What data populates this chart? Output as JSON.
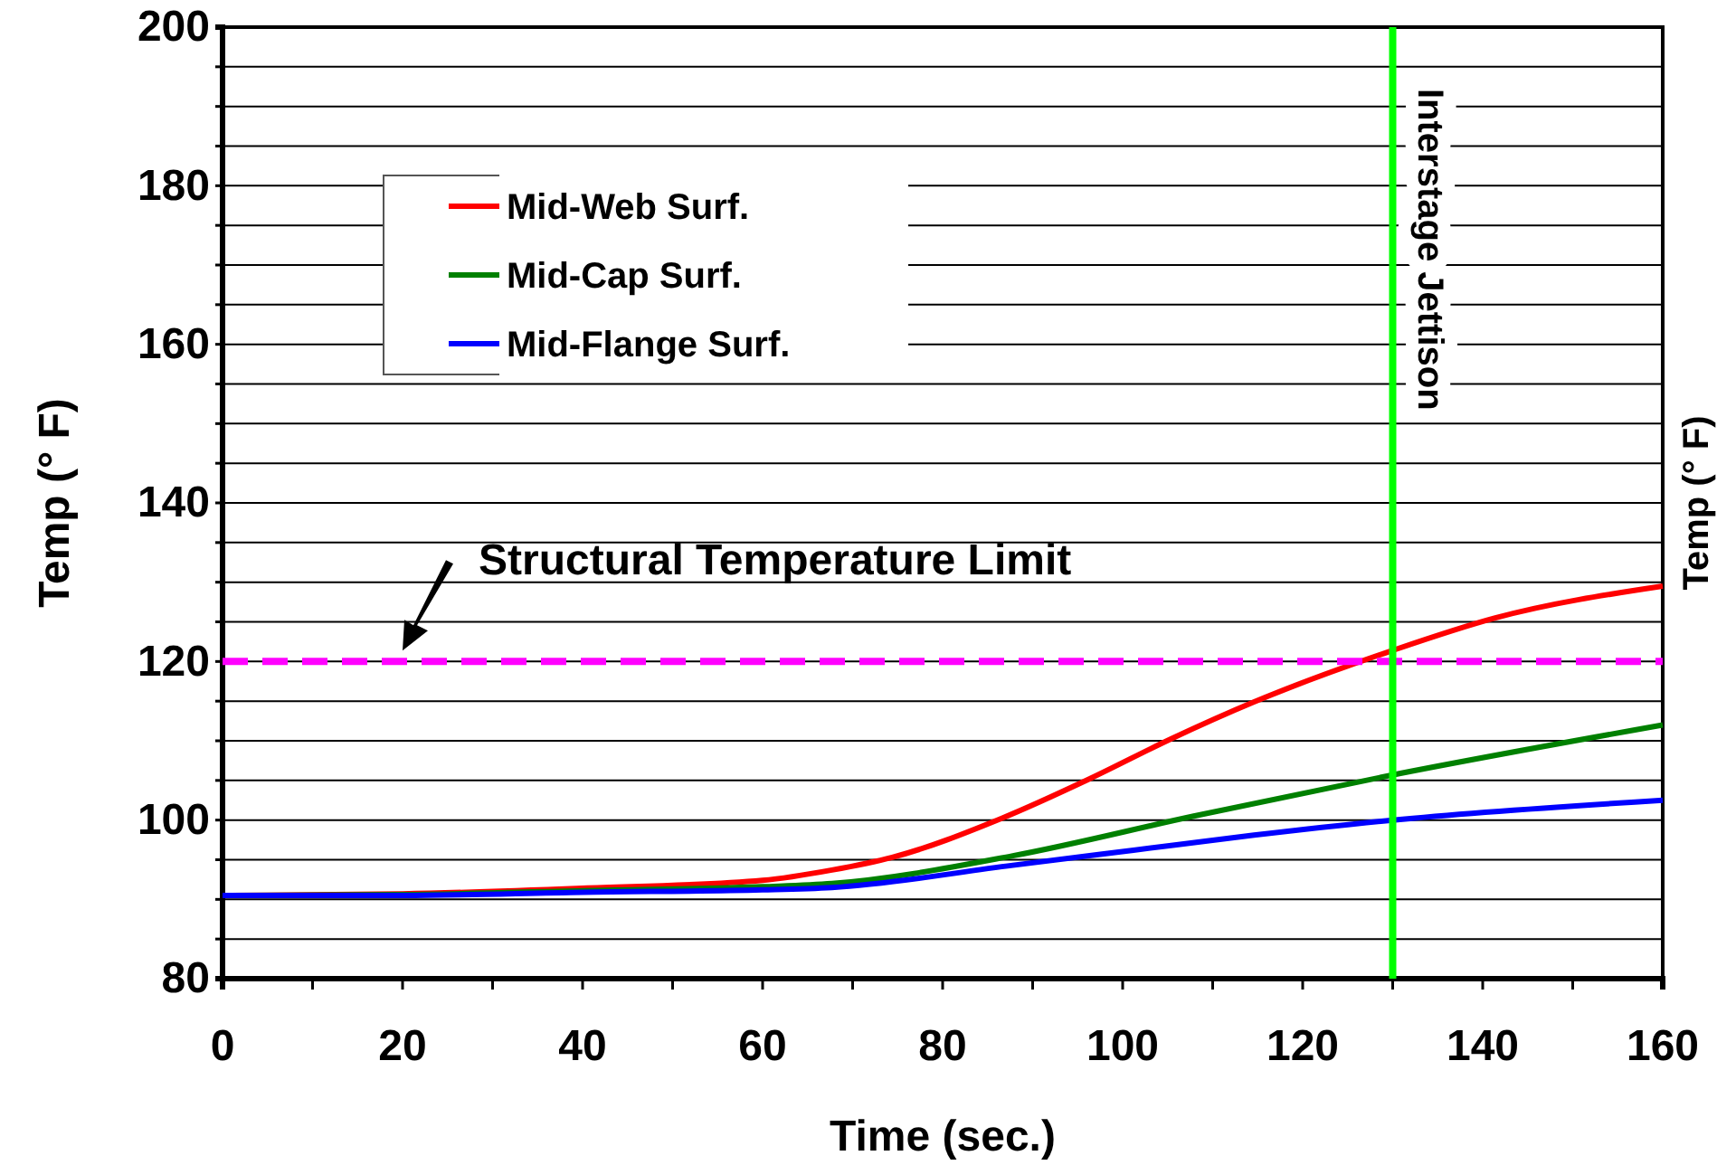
{
  "chart_data": {
    "type": "line",
    "xlabel": "Time (sec.)",
    "ylabel": "Temp (° F)",
    "y2label": "Temp (° F)",
    "xlim": [
      0,
      160
    ],
    "ylim": [
      80,
      200
    ],
    "xticks": [
      0,
      {
        "value": 10,
        "label": null
      },
      20,
      {
        "value": 30,
        "label": null
      },
      40,
      {
        "value": 50,
        "label": null
      },
      60,
      {
        "value": 70,
        "label": null
      },
      80,
      {
        "value": 90,
        "label": null
      },
      100,
      {
        "value": 110,
        "label": null
      },
      120,
      {
        "value": 130,
        "label": null
      },
      140,
      {
        "value": 150,
        "label": null
      },
      160
    ],
    "yticks": [
      80,
      {
        "value": 85,
        "label": null
      },
      {
        "value": 90,
        "label": null
      },
      {
        "value": 95,
        "label": null
      },
      100,
      {
        "value": 105,
        "label": null
      },
      {
        "value": 110,
        "label": null
      },
      {
        "value": 115,
        "label": null
      },
      120,
      {
        "value": 125,
        "label": null
      },
      {
        "value": 130,
        "label": null
      },
      {
        "value": 135,
        "label": null
      },
      140,
      {
        "value": 145,
        "label": null
      },
      {
        "value": 150,
        "label": null
      },
      {
        "value": 155,
        "label": null
      },
      160,
      {
        "value": 165,
        "label": null
      },
      {
        "value": 170,
        "label": null
      },
      {
        "value": 175,
        "label": null
      },
      180,
      {
        "value": 185,
        "label": null
      },
      {
        "value": 190,
        "label": null
      },
      {
        "value": 195,
        "label": null
      },
      200
    ],
    "grid": "y",
    "legend": "top left",
    "line_style": "solid",
    "ref_lines": [
      {
        "axis": "y",
        "value": 120,
        "label": "Structural Temperature Limit",
        "color": "#ff00ff",
        "line_style": "dashed"
      },
      {
        "axis": "x",
        "value": 130,
        "label": "Interstage Jettison",
        "color": "#00ff00",
        "line_style": "solid"
      }
    ],
    "series": [
      {
        "name": "Mid-Web Surf.",
        "color": "#ff0000",
        "x": [
          0,
          20,
          40,
          60,
          67.7,
          74.4,
          86.5,
          96.5,
          105.3,
          114.6,
          130,
          141.4,
          160
        ],
        "values": [
          90.5,
          90.7,
          91.4,
          92.4,
          93.7,
          95.3,
          100.2,
          105.3,
          110.2,
          114.9,
          121.4,
          125.5,
          129.5
        ]
      },
      {
        "name": "Mid-Cap Surf.",
        "color": "#008000",
        "x": [
          0,
          20,
          40,
          60,
          67.7,
          87.8,
          107.9,
          130,
          160
        ],
        "values": [
          90.5,
          90.6,
          91.1,
          91.6,
          92.0,
          95.5,
          100.5,
          105.7,
          112.0
        ]
      },
      {
        "name": "Mid-Flange Surf.",
        "color": "#0000ff",
        "x": [
          0,
          20,
          40,
          60,
          67.7,
          87.8,
          101.2,
          114.6,
          130,
          160
        ],
        "values": [
          90.5,
          90.5,
          90.9,
          91.2,
          91.5,
          94.3,
          96.2,
          98.1,
          100.0,
          102.5
        ]
      }
    ]
  }
}
